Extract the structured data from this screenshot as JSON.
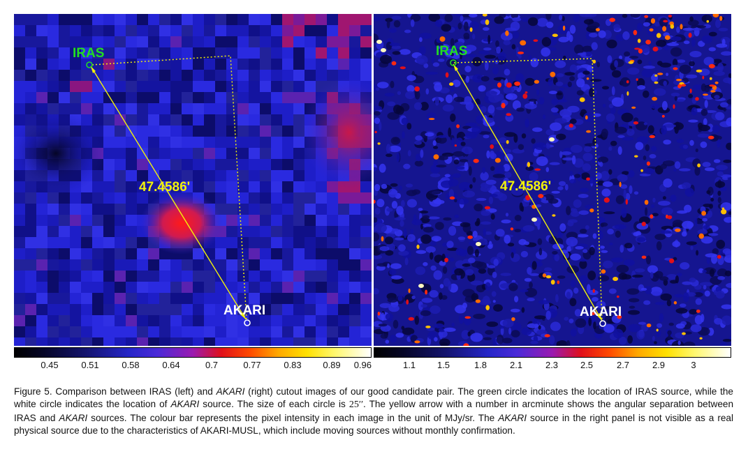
{
  "left_panel": {
    "labels": {
      "iras": "IRAS",
      "akari": "AKARI",
      "separation": "47.4586'"
    }
  },
  "right_panel": {
    "labels": {
      "iras": "IRAS",
      "akari": "AKARI",
      "separation": "47.4586'"
    }
  },
  "colorbar_left": {
    "ticks": [
      "0.45",
      "0.51",
      "0.58",
      "0.64",
      "0.7",
      "0.77",
      "0.83",
      "0.89",
      "0.96"
    ]
  },
  "colorbar_right": {
    "ticks": [
      "1.1",
      "1.5",
      "1.8",
      "2.1",
      "2.3",
      "2.5",
      "2.7",
      "2.9",
      "3"
    ]
  },
  "caption": {
    "p1": "Figure 5. Comparison between IRAS (left) and ",
    "akari1": "AKARI",
    "p2": " (right) cutout images of our good candidate pair. The green circle indicates the location of IRAS source, while the white circle indicates the location of ",
    "akari2": "AKARI",
    "p3": " source. The size of each circle is ",
    "size": "25′′",
    "p4": ". The yellow arrow with a number in arcminute shows the angular separation between IRAS and ",
    "akari3": "AKARI",
    "p5": " sources. The colour bar represents the pixel intensity in each image in the unit of MJy/sr. The ",
    "akari4": "AKARI",
    "p6": " source in the right panel is not visible as a real physical source due to the characteristics of AKARI-MUSL, which include moving sources without monthly confirmation."
  },
  "colors": {
    "iras_label": "#22dd22",
    "akari_label": "#ffffff",
    "arrow": "#f2f20a",
    "panel_bg": "#1a1ab8"
  }
}
